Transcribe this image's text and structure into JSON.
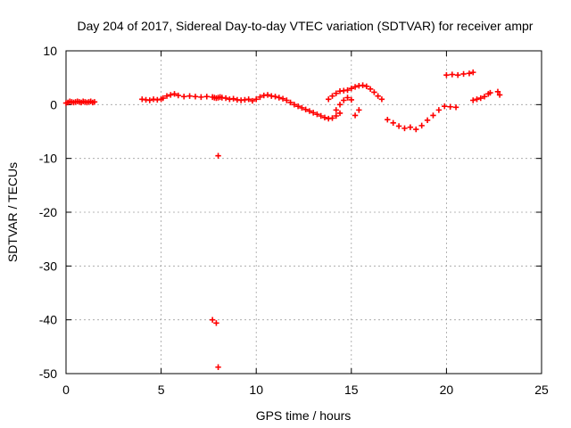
{
  "chart_data": {
    "type": "scatter",
    "title": "Day 204 of 2017, Sidereal Day-to-day VTEC variation (SDTVAR) for receiver ampr",
    "xlabel": "GPS time / hours",
    "ylabel": "SDTVAR / TECUs",
    "xlim": [
      0,
      25
    ],
    "ylim": [
      -50,
      10
    ],
    "xticks": [
      0,
      5,
      10,
      15,
      20,
      25
    ],
    "yticks": [
      10,
      0,
      -10,
      -20,
      -30,
      -40,
      -50
    ],
    "grid": true,
    "marker": "+",
    "color": "#ff0000",
    "series": [
      {
        "name": "SDTVAR",
        "x": [
          0.0,
          0.1,
          0.2,
          0.3,
          0.4,
          0.5,
          0.6,
          0.7,
          0.8,
          0.9,
          1.0,
          1.1,
          1.2,
          1.3,
          1.4,
          1.5,
          4.0,
          4.2,
          4.4,
          4.6,
          4.8,
          5.0,
          5.1,
          5.3,
          5.5,
          5.7,
          5.9,
          6.2,
          6.5,
          6.8,
          7.1,
          7.4,
          7.7,
          7.8,
          7.9,
          8.0,
          8.1,
          8.2,
          8.4,
          8.6,
          8.8,
          9.0,
          9.2,
          9.4,
          9.6,
          9.8,
          10.0,
          10.2,
          10.4,
          10.6,
          10.8,
          11.0,
          11.2,
          11.4,
          11.6,
          11.8,
          12.0,
          12.2,
          12.4,
          12.6,
          12.8,
          13.0,
          13.2,
          13.4,
          13.6,
          13.8,
          14.0,
          14.2,
          14.4,
          13.8,
          14.0,
          14.2,
          14.4,
          14.6,
          14.8,
          15.0,
          15.2,
          15.4,
          15.6,
          15.8,
          16.0,
          16.2,
          16.4,
          16.6,
          14.2,
          14.4,
          14.6,
          14.8,
          15.0,
          15.2,
          15.4,
          16.9,
          17.2,
          17.5,
          17.8,
          18.1,
          18.4,
          18.7,
          19.0,
          19.3,
          19.6,
          19.9,
          20.2,
          20.5,
          20.0,
          20.3,
          20.6,
          20.9,
          21.2,
          21.4,
          21.4,
          21.6,
          21.8,
          22.0,
          22.2,
          22.3,
          22.7,
          22.8,
          8.0,
          7.7,
          7.9,
          8.0
        ],
        "y": [
          0.3,
          0.4,
          0.6,
          0.5,
          0.4,
          0.5,
          0.6,
          0.5,
          0.4,
          0.6,
          0.5,
          0.4,
          0.5,
          0.6,
          0.4,
          0.5,
          1.0,
          0.9,
          0.8,
          1.0,
          0.9,
          1.0,
          1.2,
          1.6,
          1.8,
          2.0,
          1.7,
          1.5,
          1.6,
          1.5,
          1.4,
          1.5,
          1.4,
          1.3,
          1.2,
          1.3,
          1.4,
          1.3,
          1.2,
          1.0,
          1.1,
          0.9,
          0.8,
          0.9,
          1.0,
          0.7,
          1.0,
          1.4,
          1.7,
          1.8,
          1.6,
          1.5,
          1.3,
          1.1,
          0.8,
          0.4,
          0.0,
          -0.3,
          -0.6,
          -0.9,
          -1.2,
          -1.5,
          -1.8,
          -2.1,
          -2.4,
          -2.6,
          -2.5,
          -2.1,
          -1.6,
          1.0,
          1.6,
          2.1,
          2.5,
          2.6,
          2.7,
          3.0,
          3.3,
          3.5,
          3.6,
          3.4,
          2.9,
          2.3,
          1.6,
          1.0,
          -1.0,
          0.0,
          0.8,
          1.3,
          0.9,
          -2.0,
          -1.0,
          -2.8,
          -3.4,
          -4.0,
          -4.4,
          -4.2,
          -4.6,
          -3.9,
          -2.9,
          -2.0,
          -1.0,
          -0.3,
          -0.4,
          -0.5,
          5.5,
          5.6,
          5.5,
          5.7,
          5.8,
          6.0,
          0.8,
          1.0,
          1.2,
          1.5,
          2.0,
          2.2,
          2.4,
          1.8,
          -9.5,
          -40.0,
          -40.6,
          -48.8
        ]
      }
    ]
  }
}
